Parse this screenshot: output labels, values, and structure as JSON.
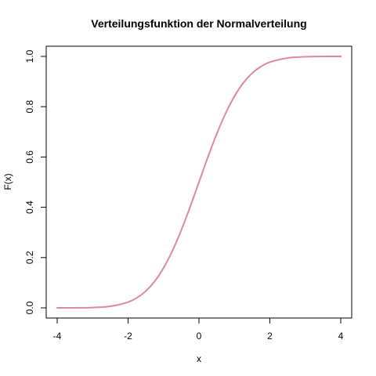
{
  "chart_data": {
    "type": "line",
    "title": "Verteilungsfunktion der Normalverteilung",
    "xlabel": "x",
    "ylabel": "F(x)",
    "xlim": [
      -4,
      4
    ],
    "ylim": [
      0,
      1
    ],
    "xticks": [
      -4,
      -2,
      0,
      2,
      4
    ],
    "xtick_labels": [
      "-4",
      "-2",
      "0",
      "2",
      "4"
    ],
    "yticks": [
      0.0,
      0.2,
      0.4,
      0.6,
      0.8,
      1.0
    ],
    "ytick_labels": [
      "0.0",
      "0.2",
      "0.4",
      "0.6",
      "0.8",
      "1.0"
    ],
    "grid": false,
    "series": [
      {
        "color": "#e085a8",
        "x": [
          -4.0,
          -3.5,
          -3.0,
          -2.5,
          -2.0,
          -1.75,
          -1.5,
          -1.25,
          -1.0,
          -0.75,
          -0.5,
          -0.25,
          0.0,
          0.25,
          0.5,
          0.75,
          1.0,
          1.25,
          1.5,
          1.75,
          2.0,
          2.5,
          3.0,
          3.5,
          4.0
        ],
        "y": [
          0.0,
          0.0002,
          0.0013,
          0.0062,
          0.0228,
          0.0401,
          0.0668,
          0.1056,
          0.1587,
          0.2266,
          0.3085,
          0.4013,
          0.5,
          0.5987,
          0.6915,
          0.7734,
          0.8413,
          0.8944,
          0.9332,
          0.9599,
          0.9772,
          0.9938,
          0.9987,
          0.9998,
          1.0
        ]
      }
    ]
  }
}
